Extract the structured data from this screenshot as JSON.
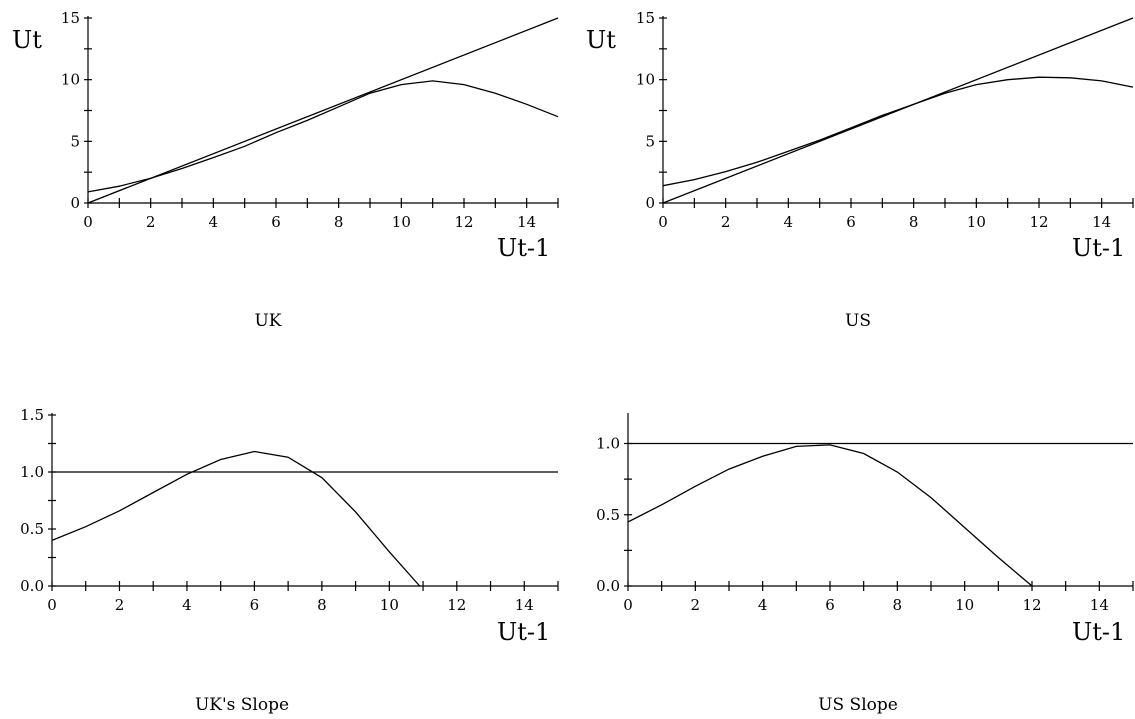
{
  "chart_data": [
    {
      "id": "uk",
      "type": "line",
      "caption": "UK",
      "xlabel": "Ut-1",
      "ylabel": "Ut",
      "xlim": [
        0,
        15
      ],
      "ylim": [
        0,
        15
      ],
      "xticks": [
        0,
        2,
        4,
        6,
        8,
        10,
        12,
        14
      ],
      "yticks": [
        0,
        5,
        10,
        15
      ],
      "series": [
        {
          "x": [
            0,
            15
          ],
          "y": [
            0,
            15
          ]
        },
        {
          "x": [
            0,
            1,
            2,
            3,
            4,
            5,
            6,
            7,
            8,
            9,
            10,
            11,
            12,
            13,
            14,
            15
          ],
          "y": [
            0.9,
            1.36,
            2.0,
            2.8,
            3.68,
            4.6,
            5.7,
            6.7,
            7.8,
            8.9,
            9.6,
            9.9,
            9.6,
            8.9,
            8.0,
            7.0
          ]
        }
      ]
    },
    {
      "id": "us",
      "type": "line",
      "caption": "US",
      "xlabel": "Ut-1",
      "ylabel": "Ut",
      "xlim": [
        0,
        15
      ],
      "ylim": [
        0,
        15
      ],
      "xticks": [
        0,
        2,
        4,
        6,
        8,
        10,
        12,
        14
      ],
      "yticks": [
        0,
        5,
        10,
        15
      ],
      "series": [
        {
          "x": [
            0,
            15
          ],
          "y": [
            0,
            15
          ]
        },
        {
          "x": [
            0,
            1,
            2,
            3,
            4,
            5,
            6,
            7,
            8,
            9,
            10,
            11,
            12,
            13,
            14,
            15
          ],
          "y": [
            1.4,
            1.9,
            2.55,
            3.3,
            4.2,
            5.1,
            6.1,
            7.1,
            8.0,
            8.9,
            9.6,
            10.0,
            10.2,
            10.15,
            9.9,
            9.4
          ]
        }
      ]
    },
    {
      "id": "uk-slope",
      "type": "line",
      "caption": "UK's Slope",
      "xlabel": "Ut-1",
      "ylabel": "",
      "xlim": [
        0,
        15
      ],
      "ylim": [
        0,
        1.5
      ],
      "xticks": [
        0,
        2,
        4,
        6,
        8,
        10,
        12,
        14
      ],
      "yticks": [
        0.0,
        0.5,
        1.0,
        1.5
      ],
      "ytick_labels": [
        "0.0",
        "0.5",
        "1.0",
        "1.5"
      ],
      "series": [
        {
          "x": [
            0,
            15
          ],
          "y": [
            1.0,
            1.0
          ]
        },
        {
          "x": [
            0,
            1,
            2,
            3,
            4,
            5,
            6,
            7,
            8,
            9,
            10,
            10.9
          ],
          "y": [
            0.4,
            0.52,
            0.66,
            0.82,
            0.98,
            1.11,
            1.18,
            1.13,
            0.95,
            0.65,
            0.3,
            0.0
          ]
        }
      ]
    },
    {
      "id": "us-slope",
      "type": "line",
      "caption": "US Slope",
      "xlabel": "Ut-1",
      "ylabel": "",
      "xlim": [
        0,
        15
      ],
      "ylim": [
        0,
        1.2
      ],
      "xticks": [
        0,
        2,
        4,
        6,
        8,
        10,
        12,
        14
      ],
      "yticks": [
        0.0,
        0.5,
        1.0
      ],
      "ytick_labels": [
        "0.0",
        "0.5",
        "1.0"
      ],
      "series": [
        {
          "x": [
            0,
            15
          ],
          "y": [
            1.0,
            1.0
          ]
        },
        {
          "x": [
            0,
            1,
            2,
            3,
            4,
            5,
            6,
            7,
            8,
            9,
            10,
            11,
            12
          ],
          "y": [
            0.45,
            0.57,
            0.7,
            0.82,
            0.91,
            0.98,
            0.99,
            0.93,
            0.8,
            0.62,
            0.41,
            0.2,
            0.0
          ]
        }
      ]
    }
  ]
}
